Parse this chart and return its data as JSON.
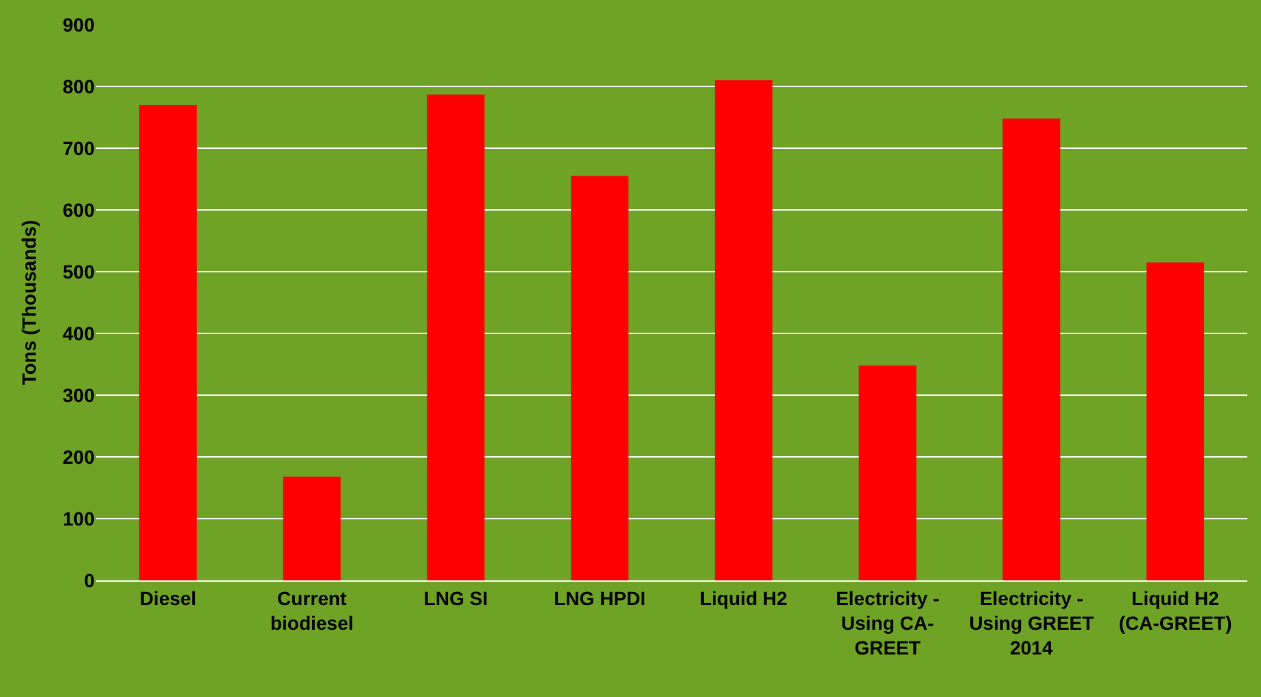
{
  "chart_data": {
    "type": "bar",
    "ylabel": "Tons (Thousands)",
    "categories": [
      "Diesel",
      "Current biodiesel",
      "LNG SI",
      "LNG HPDI",
      "Liquid H2",
      "Electricity - Using CA-GREET",
      "Electricity - Using GREET 2014",
      "Liquid H2 (CA-GREET)"
    ],
    "values": [
      770,
      168,
      787,
      655,
      810,
      348,
      748,
      515
    ],
    "color": "#ff0000",
    "ylim": [
      0,
      900
    ],
    "yticks": [
      0,
      100,
      200,
      300,
      400,
      500,
      600,
      700,
      800,
      900
    ],
    "grid": "y"
  }
}
